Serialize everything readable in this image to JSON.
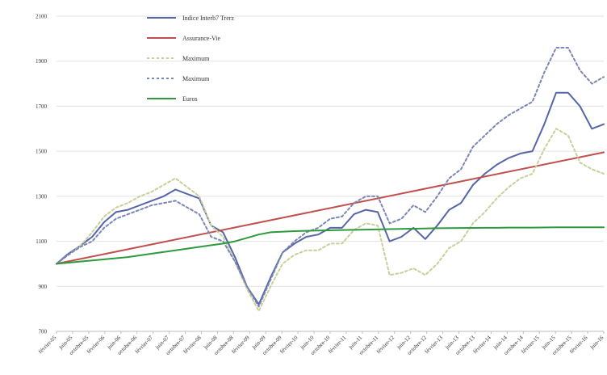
{
  "chart_data": {
    "type": "line",
    "title": "",
    "xlabel": "",
    "ylabel": "",
    "ylim": [
      700,
      2100
    ],
    "yticks": [
      700,
      900,
      1100,
      1300,
      1500,
      1700,
      1900,
      2100
    ],
    "grid": true,
    "legend_position": "top-left",
    "x_tick_labels": [
      "février-05",
      "juin-05",
      "octobre-05",
      "février-06",
      "juin-06",
      "octobre-06",
      "février-07",
      "juin-07",
      "octobre-07",
      "février-08",
      "juin-08",
      "octobre-08",
      "février-09",
      "juin-09",
      "octobre-09",
      "février-10",
      "juin-10",
      "octobre-10",
      "février-11",
      "juin-11",
      "octobre-11",
      "février-12",
      "juin-12",
      "octobre-12",
      "février-13",
      "juin-13",
      "octobre-13",
      "février-14",
      "juin-14",
      "octobre-14",
      "février-15",
      "juin-15",
      "octobre-15",
      "février-16",
      "juin-16"
    ],
    "series": [
      {
        "name": "Indice Interb7 Trerz",
        "color": "#5565a8",
        "dash": "solid",
        "values": [
          1000,
          1045,
          1080,
          1120,
          1185,
          1230,
          1240,
          1260,
          1280,
          1300,
          1330,
          1310,
          1290,
          1170,
          1140,
          1030,
          900,
          820,
          940,
          1050,
          1090,
          1120,
          1130,
          1160,
          1160,
          1220,
          1240,
          1230,
          1100,
          1120,
          1160,
          1110,
          1170,
          1240,
          1270,
          1350,
          1400,
          1440,
          1470,
          1490,
          1500,
          1620,
          1760,
          1760,
          1700,
          1600,
          1620
        ],
        "x_index_values": [
          0,
          1,
          2,
          3,
          4,
          5,
          6,
          7,
          8,
          9,
          10,
          11,
          12,
          13,
          14,
          15,
          16,
          17,
          18,
          19,
          20,
          21,
          22,
          23,
          24,
          25,
          26,
          27,
          28,
          29,
          30,
          31,
          32,
          33,
          34,
          35,
          36,
          37,
          38,
          39,
          40,
          41,
          42,
          43,
          44,
          45,
          46
        ]
      },
      {
        "name": "Assurance-Vie",
        "color": "#c0504d",
        "dash": "solid",
        "values": [
          1000,
          1495
        ],
        "x_index_values": [
          0,
          46
        ]
      },
      {
        "name": "Maximum",
        "color": "#c9cf9a",
        "dash": "dotted",
        "values": [
          1000,
          1040,
          1080,
          1140,
          1210,
          1250,
          1270,
          1300,
          1320,
          1350,
          1380,
          1340,
          1300,
          1170,
          1120,
          1010,
          890,
          790,
          900,
          1000,
          1040,
          1060,
          1060,
          1090,
          1090,
          1150,
          1180,
          1170,
          950,
          960,
          980,
          950,
          1000,
          1070,
          1100,
          1180,
          1230,
          1290,
          1340,
          1380,
          1400,
          1510,
          1600,
          1570,
          1450,
          1420,
          1400
        ],
        "x_index_values": [
          0,
          1,
          2,
          3,
          4,
          5,
          6,
          7,
          8,
          9,
          10,
          11,
          12,
          13,
          14,
          15,
          16,
          17,
          18,
          19,
          20,
          21,
          22,
          23,
          24,
          25,
          26,
          27,
          28,
          29,
          30,
          31,
          32,
          33,
          34,
          35,
          36,
          37,
          38,
          39,
          40,
          41,
          42,
          43,
          44,
          45,
          46
        ]
      },
      {
        "name": "Maximum",
        "color": "#7a86b4",
        "dash": "dotted",
        "values": [
          1000,
          1040,
          1075,
          1100,
          1160,
          1200,
          1220,
          1240,
          1260,
          1270,
          1280,
          1250,
          1220,
          1120,
          1100,
          1010,
          900,
          810,
          930,
          1050,
          1100,
          1140,
          1160,
          1200,
          1210,
          1270,
          1300,
          1300,
          1180,
          1200,
          1260,
          1230,
          1300,
          1380,
          1420,
          1520,
          1570,
          1620,
          1660,
          1690,
          1720,
          1850,
          1960,
          1960,
          1860,
          1800,
          1830
        ],
        "x_index_values": [
          0,
          1,
          2,
          3,
          4,
          5,
          6,
          7,
          8,
          9,
          10,
          11,
          12,
          13,
          14,
          15,
          16,
          17,
          18,
          19,
          20,
          21,
          22,
          23,
          24,
          25,
          26,
          27,
          28,
          29,
          30,
          31,
          32,
          33,
          34,
          35,
          36,
          37,
          38,
          39,
          40,
          41,
          42,
          43,
          44,
          45,
          46
        ]
      },
      {
        "name": "Euros",
        "color": "#2e9a3e",
        "dash": "solid",
        "values": [
          1000,
          1010,
          1020,
          1030,
          1045,
          1060,
          1075,
          1090,
          1100,
          1115,
          1130,
          1140,
          1145,
          1148,
          1150,
          1152,
          1154,
          1156,
          1158,
          1159,
          1160,
          1160,
          1161,
          1161,
          1162,
          1162,
          1162,
          1162
        ],
        "x_index_values": [
          0,
          2,
          4,
          6,
          8,
          10,
          12,
          14,
          15,
          16,
          17,
          18,
          20,
          22,
          24,
          26,
          28,
          30,
          32,
          34,
          36,
          37,
          38,
          40,
          42,
          43,
          44,
          46
        ]
      }
    ]
  }
}
